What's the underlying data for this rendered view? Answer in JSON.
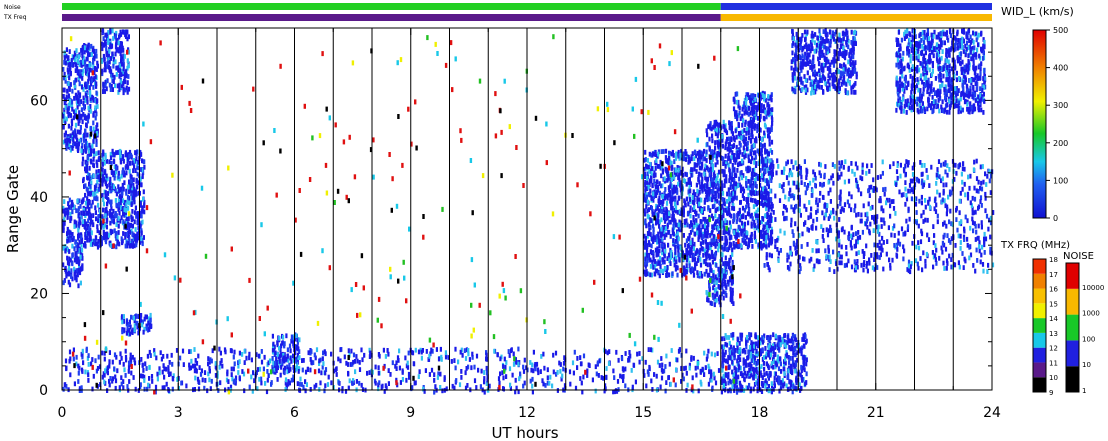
{
  "chart_data": {
    "type": "heatmap",
    "xlabel": "UT hours",
    "ylabel": "Range Gate",
    "xlim": [
      0,
      24
    ],
    "ylim": [
      0,
      75
    ],
    "x_ticks": [
      "0",
      "3",
      "6",
      "9",
      "12",
      "15",
      "18",
      "21",
      "24"
    ],
    "x_tick_values": [
      0,
      3,
      6,
      9,
      12,
      15,
      18,
      21,
      24
    ],
    "y_ticks": [
      "0",
      "20",
      "40",
      "60"
    ],
    "y_tick_values": [
      0,
      20,
      40,
      60
    ],
    "scan_boundaries_ut": [
      1,
      2,
      3,
      4,
      5,
      6,
      7,
      8,
      9,
      10,
      11,
      12,
      13,
      14,
      15,
      16,
      17,
      18,
      19,
      20,
      21,
      22,
      23
    ],
    "scatter_regions": [
      {
        "ut": [
          0.0,
          0.5
        ],
        "gate": [
          22,
          40
        ],
        "width": "low"
      },
      {
        "ut": [
          0.5,
          2.1
        ],
        "gate": [
          30,
          50
        ],
        "width": "low"
      },
      {
        "ut": [
          0.0,
          0.9
        ],
        "gate": [
          50,
          72
        ],
        "width": "low"
      },
      {
        "ut": [
          1.0,
          1.7
        ],
        "gate": [
          62,
          75
        ],
        "width": "low"
      },
      {
        "ut": [
          1.5,
          2.3
        ],
        "gate": [
          12,
          16
        ],
        "width": "low"
      },
      {
        "ut": [
          5.4,
          6.1
        ],
        "gate": [
          4,
          12
        ],
        "width": "low"
      },
      {
        "ut": [
          0.0,
          17.0
        ],
        "gate": [
          0,
          9
        ],
        "width": "low"
      },
      {
        "ut": [
          15.0,
          16.6
        ],
        "gate": [
          24,
          50
        ],
        "width": "low"
      },
      {
        "ut": [
          16.6,
          17.3
        ],
        "gate": [
          18,
          56
        ],
        "width": "low"
      },
      {
        "ut": [
          17.3,
          18.3
        ],
        "gate": [
          30,
          62
        ],
        "width": "low"
      },
      {
        "ut": [
          18.0,
          24.0
        ],
        "gate": [
          25,
          48
        ],
        "width": "low"
      },
      {
        "ut": [
          18.8,
          20.5
        ],
        "gate": [
          62,
          75
        ],
        "width": "low"
      },
      {
        "ut": [
          21.5,
          23.8
        ],
        "gate": [
          58,
          75
        ],
        "width": "low"
      },
      {
        "ut": [
          17.0,
          19.2
        ],
        "gate": [
          0,
          12
        ],
        "width": "low"
      }
    ],
    "colorbars": [
      {
        "label": "WID_L (km/s)",
        "min": 0,
        "max": 500,
        "ticks": [
          "0",
          "100",
          "200",
          "300",
          "400",
          "500"
        ],
        "tick_values": [
          0,
          100,
          200,
          300,
          400,
          500
        ]
      },
      {
        "label": "TX FRQ (MHz)",
        "ticks": [
          "9",
          "10",
          "11",
          "12",
          "13",
          "14",
          "15",
          "16",
          "17",
          "18"
        ],
        "colors": [
          "#000000",
          "#5a1a8a",
          "#2020e0",
          "#18c8e8",
          "#18c828",
          "#f0f000",
          "#f8c000",
          "#f08000",
          "#f03000",
          "#e00000"
        ]
      },
      {
        "label": "NOISE",
        "ticks": [
          "1",
          "10",
          "100",
          "1000",
          "10000"
        ],
        "colors": [
          "#000000",
          "#2020e0",
          "#18c828",
          "#f8b800",
          "#e00000"
        ]
      }
    ],
    "header_strips": [
      {
        "label": "Noise",
        "segments": [
          {
            "ut": [
              0,
              17
            ],
            "value": "100"
          },
          {
            "ut": [
              17,
              24
            ],
            "value": "10"
          }
        ]
      },
      {
        "label": "TX Freq",
        "segments": [
          {
            "ut": [
              0,
              17
            ],
            "value": "10"
          },
          {
            "ut": [
              17,
              24
            ],
            "value": "15"
          }
        ]
      }
    ]
  },
  "colors": {
    "axis": "#000000",
    "scatter_main": "#1a1ae8",
    "noise_high": "#22d022",
    "noise_low": "#2030e0",
    "freq_low": "#5a1a8a",
    "freq_high": "#f8b800"
  }
}
